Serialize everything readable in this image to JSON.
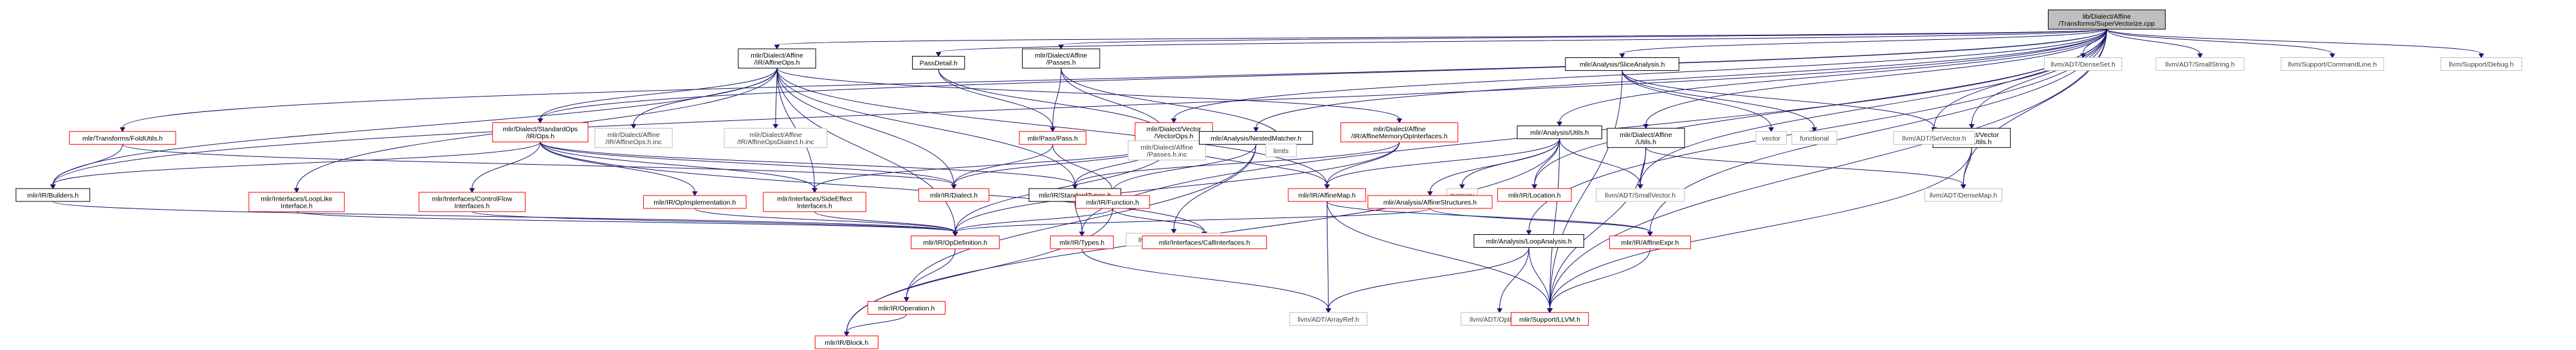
{
  "colors": {
    "edge": "#191970",
    "border_red": "#ff0000",
    "border_black": "#000000",
    "border_gray": "#bfbfbf",
    "root_fill": "#bfbfbf",
    "text": "#000000",
    "muted_text": "#404040"
  },
  "nodes": [
    {
      "id": "root",
      "lines": [
        "lib/Dialect/Affine",
        "/Transforms/SuperVectorize.cpp"
      ],
      "border": "black",
      "fill": "gray"
    },
    {
      "id": "affine_ops",
      "lines": [
        "mlir/Dialect/Affine",
        "/IR/AffineOps.h"
      ],
      "border": "black"
    },
    {
      "id": "pass_detail",
      "lines": [
        "PassDetail.h"
      ],
      "border": "black"
    },
    {
      "id": "affine_passes",
      "lines": [
        "mlir/Dialect/Affine",
        "/Passes.h"
      ],
      "border": "black"
    },
    {
      "id": "vector_ops",
      "lines": [
        "mlir/Dialect/Vector",
        "/VectorOps.h"
      ],
      "border": "red"
    },
    {
      "id": "affine_memop_ifaces",
      "lines": [
        "mlir/Dialect/Affine",
        "/IR/AffineMemoryOpInterfaces.h"
      ],
      "border": "red"
    },
    {
      "id": "fold_utils",
      "lines": [
        "mlir/Transforms/FoldUtils.h"
      ],
      "border": "red"
    },
    {
      "id": "std_ops",
      "lines": [
        "mlir/Dialect/StandardOps",
        "/IR/Ops.h"
      ],
      "border": "red"
    },
    {
      "id": "affine_ops_inc",
      "lines": [
        "mlir/Dialect/Affine",
        "/IR/AffineOps.h.inc"
      ],
      "border": "gray"
    },
    {
      "id": "affine_ops_dialect_inc",
      "lines": [
        "mlir/Dialect/Affine",
        "/IR/AffineOpsDialect.h.inc"
      ],
      "border": "gray"
    },
    {
      "id": "pass_pass",
      "lines": [
        "mlir/Pass/Pass.h"
      ],
      "border": "red"
    },
    {
      "id": "affine_passes_inc",
      "lines": [
        "mlir/Dialect/Affine",
        "/Passes.h.inc"
      ],
      "border": "gray"
    },
    {
      "id": "nested_matcher",
      "lines": [
        "mlir/Analysis/NestedMatcher.h"
      ],
      "border": "black"
    },
    {
      "id": "limits",
      "lines": [
        "limits"
      ],
      "border": "gray"
    },
    {
      "id": "analysis_utils",
      "lines": [
        "mlir/Analysis/Utils.h"
      ],
      "border": "black"
    },
    {
      "id": "slice_analysis",
      "lines": [
        "mlir/Analysis/SliceAnalysis.h"
      ],
      "border": "black"
    },
    {
      "id": "affine_utils",
      "lines": [
        "mlir/Dialect/Affine",
        "/Utils.h"
      ],
      "border": "black"
    },
    {
      "id": "vector_utils",
      "lines": [
        "mlir/Dialect/Vector",
        "/VectorUtils.h"
      ],
      "border": "black"
    },
    {
      "id": "dense_set",
      "lines": [
        "llvm/ADT/DenseSet.h"
      ],
      "border": "gray"
    },
    {
      "id": "small_string",
      "lines": [
        "llvm/ADT/SmallString.h"
      ],
      "border": "gray"
    },
    {
      "id": "command_line",
      "lines": [
        "llvm/Support/CommandLine.h"
      ],
      "border": "gray"
    },
    {
      "id": "debug",
      "lines": [
        "llvm/Support/Debug.h"
      ],
      "border": "gray"
    },
    {
      "id": "builders",
      "lines": [
        "mlir/IR/Builders.h"
      ],
      "border": "black"
    },
    {
      "id": "loop_like",
      "lines": [
        "mlir/Interfaces/LoopLike",
        "Interface.h"
      ],
      "border": "red"
    },
    {
      "id": "control_flow",
      "lines": [
        "mlir/Interfaces/ControlFlow",
        "Interfaces.h"
      ],
      "border": "red"
    },
    {
      "id": "op_impl",
      "lines": [
        "mlir/IR/OpImplementation.h"
      ],
      "border": "red"
    },
    {
      "id": "side_effect",
      "lines": [
        "mlir/Interfaces/SideEffect",
        "Interfaces.h"
      ],
      "border": "red"
    },
    {
      "id": "dialect",
      "lines": [
        "mlir/IR/Dialect.h"
      ],
      "border": "red"
    },
    {
      "id": "standard_types",
      "lines": [
        "mlir/IR/StandardTypes.h"
      ],
      "border": "black"
    },
    {
      "id": "function",
      "lines": [
        "mlir/IR/Function.h"
      ],
      "border": "red"
    },
    {
      "id": "allocator",
      "lines": [
        "llvm/Support/Allocator.h"
      ],
      "border": "gray"
    },
    {
      "id": "affine_map",
      "lines": [
        "mlir/IR/AffineMap.h"
      ],
      "border": "red"
    },
    {
      "id": "memory",
      "lines": [
        "memory"
      ],
      "border": "gray"
    },
    {
      "id": "location",
      "lines": [
        "mlir/IR/Location.h"
      ],
      "border": "red"
    },
    {
      "id": "affine_structures",
      "lines": [
        "mlir/Analysis/AffineStructures.h"
      ],
      "border": "red"
    },
    {
      "id": "small_vector",
      "lines": [
        "llvm/ADT/SmallVector.h"
      ],
      "border": "gray"
    },
    {
      "id": "vector",
      "lines": [
        "vector"
      ],
      "border": "gray"
    },
    {
      "id": "functional",
      "lines": [
        "functional"
      ],
      "border": "gray"
    },
    {
      "id": "set_vector",
      "lines": [
        "llvm/ADT/SetVector.h"
      ],
      "border": "gray"
    },
    {
      "id": "dense_map",
      "lines": [
        "llvm/ADT/DenseMap.h"
      ],
      "border": "gray"
    },
    {
      "id": "op_definition",
      "lines": [
        "mlir/IR/OpDefinition.h"
      ],
      "border": "red"
    },
    {
      "id": "call_interfaces",
      "lines": [
        "mlir/Interfaces/CallInterfaces.h"
      ],
      "border": "red"
    },
    {
      "id": "types",
      "lines": [
        "mlir/IR/Types.h"
      ],
      "border": "red"
    },
    {
      "id": "loop_analysis",
      "lines": [
        "mlir/Analysis/LoopAnalysis.h"
      ],
      "border": "black"
    },
    {
      "id": "affine_expr",
      "lines": [
        "mlir/IR/AffineExpr.h"
      ],
      "border": "red"
    },
    {
      "id": "operation",
      "lines": [
        "mlir/IR/Operation.h"
      ],
      "border": "red"
    },
    {
      "id": "array_ref",
      "lines": [
        "llvm/ADT/ArrayRef.h"
      ],
      "border": "gray"
    },
    {
      "id": "optional",
      "lines": [
        "llvm/ADT/Optional.h"
      ],
      "border": "gray"
    },
    {
      "id": "support_llvm",
      "lines": [
        "mlir/Support/LLVM.h"
      ],
      "border": "red"
    },
    {
      "id": "block",
      "lines": [
        "mlir/IR/Block.h"
      ],
      "border": "red"
    }
  ],
  "edges": [
    [
      "root",
      "affine_ops"
    ],
    [
      "root",
      "pass_detail"
    ],
    [
      "root",
      "affine_passes"
    ],
    [
      "root",
      "vector_ops"
    ],
    [
      "root",
      "fold_utils"
    ],
    [
      "root",
      "std_ops"
    ],
    [
      "root",
      "nested_matcher"
    ],
    [
      "root",
      "analysis_utils"
    ],
    [
      "root",
      "slice_analysis"
    ],
    [
      "root",
      "affine_utils"
    ],
    [
      "root",
      "vector_utils"
    ],
    [
      "root",
      "dense_set"
    ],
    [
      "root",
      "small_string"
    ],
    [
      "root",
      "command_line"
    ],
    [
      "root",
      "debug"
    ],
    [
      "root",
      "builders"
    ],
    [
      "root",
      "loop_analysis"
    ],
    [
      "root",
      "location"
    ],
    [
      "root",
      "types"
    ],
    [
      "root",
      "support_llvm"
    ],
    [
      "root",
      "affine_expr"
    ],
    [
      "root",
      "small_vector"
    ],
    [
      "root",
      "set_vector"
    ],
    [
      "root",
      "dense_map"
    ],
    [
      "affine_ops",
      "affine_ops_inc"
    ],
    [
      "affine_ops",
      "affine_ops_dialect_inc"
    ],
    [
      "affine_ops",
      "affine_memop_ifaces"
    ],
    [
      "affine_ops",
      "std_ops"
    ],
    [
      "affine_ops",
      "builders"
    ],
    [
      "affine_ops",
      "op_definition"
    ],
    [
      "affine_ops",
      "dialect"
    ],
    [
      "affine_ops",
      "standard_types"
    ],
    [
      "affine_ops",
      "side_effect"
    ],
    [
      "affine_ops",
      "loop_like"
    ],
    [
      "affine_ops",
      "affine_map"
    ],
    [
      "pass_detail",
      "pass_pass"
    ],
    [
      "pass_detail",
      "affine_passes_inc"
    ],
    [
      "affine_passes",
      "pass_pass"
    ],
    [
      "affine_passes",
      "affine_passes_inc"
    ],
    [
      "affine_passes",
      "limits"
    ],
    [
      "vector_ops",
      "dialect"
    ],
    [
      "vector_ops",
      "standard_types"
    ],
    [
      "vector_ops",
      "side_effect"
    ],
    [
      "vector_ops",
      "op_definition"
    ],
    [
      "vector_ops",
      "affine_map"
    ],
    [
      "affine_memop_ifaces",
      "standard_types"
    ],
    [
      "affine_memop_ifaces",
      "op_definition"
    ],
    [
      "affine_memop_ifaces",
      "affine_map"
    ],
    [
      "fold_utils",
      "builders"
    ],
    [
      "fold_utils",
      "dialect"
    ],
    [
      "std_ops",
      "builders"
    ],
    [
      "std_ops",
      "dialect"
    ],
    [
      "std_ops",
      "standard_types"
    ],
    [
      "std_ops",
      "side_effect"
    ],
    [
      "std_ops",
      "control_flow"
    ],
    [
      "std_ops",
      "op_impl"
    ],
    [
      "std_ops",
      "call_interfaces"
    ],
    [
      "pass_pass",
      "dialect"
    ],
    [
      "pass_pass",
      "function"
    ],
    [
      "nested_matcher",
      "function"
    ],
    [
      "nested_matcher",
      "allocator"
    ],
    [
      "nested_matcher",
      "operation"
    ],
    [
      "analysis_utils",
      "affine_map"
    ],
    [
      "analysis_utils",
      "memory"
    ],
    [
      "analysis_utils",
      "location"
    ],
    [
      "analysis_utils",
      "affine_structures"
    ],
    [
      "analysis_utils",
      "small_vector"
    ],
    [
      "analysis_utils",
      "support_llvm"
    ],
    [
      "analysis_utils",
      "block"
    ],
    [
      "slice_analysis",
      "vector"
    ],
    [
      "slice_analysis",
      "functional"
    ],
    [
      "slice_analysis",
      "set_vector"
    ],
    [
      "slice_analysis",
      "support_llvm"
    ],
    [
      "affine_utils",
      "small_vector"
    ],
    [
      "affine_utils",
      "dense_map"
    ],
    [
      "affine_utils",
      "support_llvm"
    ],
    [
      "vector_utils",
      "dense_map"
    ],
    [
      "vector_utils",
      "support_llvm"
    ],
    [
      "builders",
      "op_definition"
    ],
    [
      "loop_like",
      "op_definition"
    ],
    [
      "control_flow",
      "op_definition"
    ],
    [
      "op_impl",
      "op_definition"
    ],
    [
      "side_effect",
      "op_definition"
    ],
    [
      "function",
      "op_definition"
    ],
    [
      "function",
      "call_interfaces"
    ],
    [
      "function",
      "block"
    ],
    [
      "affine_map",
      "array_ref"
    ],
    [
      "affine_map",
      "affine_expr"
    ],
    [
      "affine_map",
      "support_llvm"
    ],
    [
      "affine_structures",
      "affine_expr"
    ],
    [
      "affine_structures",
      "op_definition"
    ],
    [
      "affine_expr",
      "support_llvm"
    ],
    [
      "op_definition",
      "operation"
    ],
    [
      "standard_types",
      "types"
    ],
    [
      "types",
      "array_ref"
    ],
    [
      "loop_analysis",
      "array_ref"
    ],
    [
      "loop_analysis",
      "optional"
    ],
    [
      "loop_analysis",
      "support_llvm"
    ],
    [
      "operation",
      "block"
    ]
  ]
}
